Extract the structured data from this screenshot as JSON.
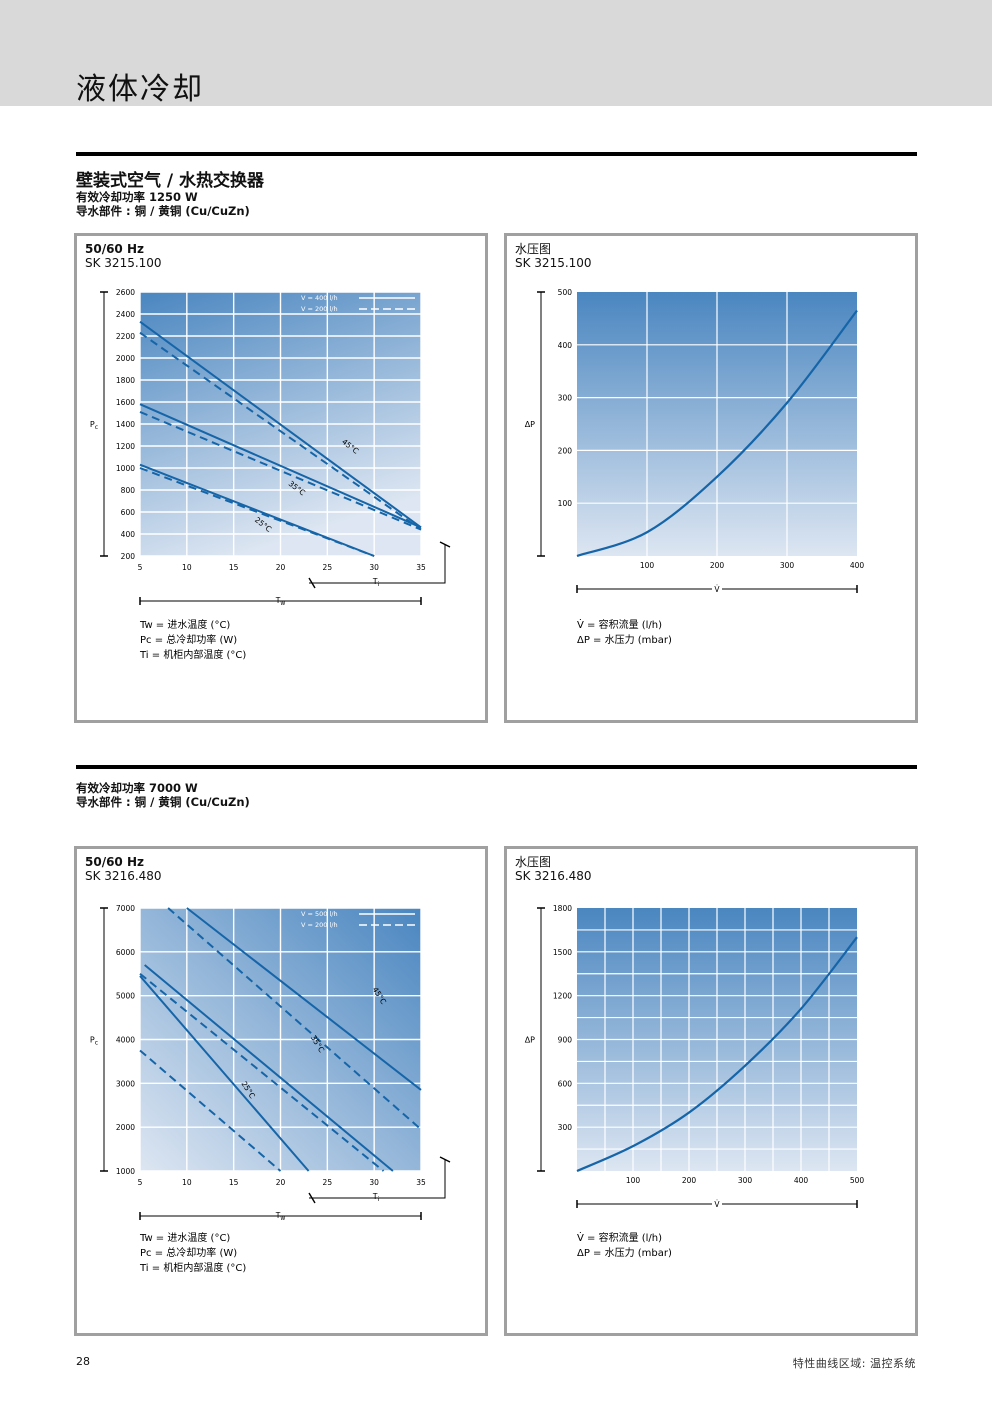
{
  "page": {
    "title": "液体冷却",
    "number": "28",
    "footer": "特性曲线区域: 温控系统"
  },
  "section1": {
    "heading": "壁装式空气 / 水热交换器",
    "power": "有效冷却功率 1250 W",
    "material": "导水部件 : 铜 / 黄铜 (Cu/CuZn)"
  },
  "section2": {
    "power": "有效冷却功率 7000 W",
    "material": "导水部件 : 铜 / 黄铜 (Cu/CuZn)"
  },
  "charts": {
    "c1": {
      "head1": "50/60 Hz",
      "head2": "SK 3215.100"
    },
    "c2": {
      "head1": "水压图",
      "head2": "SK 3215.100"
    },
    "c3": {
      "head1": "50/60 Hz",
      "head2": "SK 3216.480"
    },
    "c4": {
      "head1": "水压图",
      "head2": "SK 3216.480"
    }
  },
  "colors": {
    "grad_top": "#4a86c0",
    "grad_bottom": "#dde6f2",
    "line": "#1565a8"
  },
  "chart_data": [
    {
      "type": "line",
      "xlabel": "Tw",
      "ylabel": "Pc",
      "x2label": "Ti",
      "xlim": [
        5,
        35
      ],
      "ylim": [
        200,
        2600
      ],
      "xticks": [
        5,
        10,
        15,
        20,
        25,
        30,
        35
      ],
      "yticks": [
        200,
        400,
        600,
        800,
        1000,
        1200,
        1400,
        1600,
        1800,
        2000,
        2200,
        2400,
        2600
      ],
      "legend": [
        {
          "label": "V = 400 l/h",
          "style": "solid"
        },
        {
          "label": "V = 200 l/h",
          "style": "dashed"
        }
      ],
      "series": [
        {
          "name": "45°C",
          "flow": "400",
          "style": "solid",
          "x": [
            5,
            35
          ],
          "y": [
            2330,
            460
          ]
        },
        {
          "name": "45°C",
          "flow": "200",
          "style": "dashed",
          "x": [
            5,
            35
          ],
          "y": [
            2230,
            440
          ]
        },
        {
          "name": "35°C",
          "flow": "400",
          "style": "solid",
          "x": [
            5,
            35
          ],
          "y": [
            1580,
            460
          ]
        },
        {
          "name": "35°C",
          "flow": "200",
          "style": "dashed",
          "x": [
            5,
            35
          ],
          "y": [
            1510,
            440
          ]
        },
        {
          "name": "25°C",
          "flow": "400",
          "style": "solid",
          "x": [
            5,
            30
          ],
          "y": [
            1030,
            200
          ]
        },
        {
          "name": "25°C",
          "flow": "200",
          "style": "dashed",
          "x": [
            5,
            30
          ],
          "y": [
            1000,
            200
          ]
        }
      ],
      "annotations": [
        "45°C",
        "35°C",
        "25°C"
      ],
      "legend_keys": {
        "Tw": "Tw = 进水温度 (°C)",
        "Pc": "Pc = 总冷却功率 (W)",
        "Ti": "Ti  = 机柜内部温度 (°C)"
      }
    },
    {
      "type": "line",
      "xlabel": "V̇",
      "ylabel": "ΔP",
      "xlim": [
        0,
        400
      ],
      "ylim": [
        0,
        500
      ],
      "xticks": [
        100,
        200,
        300,
        400
      ],
      "yticks": [
        100,
        200,
        300,
        400,
        500
      ],
      "series": [
        {
          "name": "",
          "x": [
            0,
            100,
            200,
            300,
            400
          ],
          "y": [
            0,
            45,
            150,
            290,
            465
          ]
        }
      ],
      "legend_keys": {
        "V": "V̇  = 容积流量 (l/h)",
        "P": "ΔP = 水压力 (mbar)"
      }
    },
    {
      "type": "line",
      "xlabel": "Tw",
      "ylabel": "Pc",
      "x2label": "Ti",
      "xlim": [
        5,
        35
      ],
      "ylim": [
        1000,
        7000
      ],
      "xticks": [
        5,
        10,
        15,
        20,
        25,
        30,
        35
      ],
      "yticks": [
        1000,
        2000,
        3000,
        4000,
        5000,
        6000,
        7000
      ],
      "legend": [
        {
          "label": "V = 500 l/h",
          "style": "solid"
        },
        {
          "label": "V = 200 l/h",
          "style": "dashed"
        }
      ],
      "series": [
        {
          "name": "45°C",
          "flow": "500",
          "style": "solid",
          "x": [
            10,
            35
          ],
          "y": [
            7000,
            2850
          ]
        },
        {
          "name": "45°C",
          "flow": "200",
          "style": "dashed",
          "x": [
            8,
            35
          ],
          "y": [
            7000,
            1950
          ]
        },
        {
          "name": "35°C",
          "flow": "500",
          "style": "solid",
          "x": [
            5.5,
            32
          ],
          "y": [
            5700,
            1000
          ]
        },
        {
          "name": "35°C",
          "flow": "200",
          "style": "dashed",
          "x": [
            5,
            31
          ],
          "y": [
            5500,
            1000
          ]
        },
        {
          "name": "25°C",
          "flow": "500",
          "style": "solid",
          "x": [
            5,
            23
          ],
          "y": [
            5450,
            1000
          ]
        },
        {
          "name": "25°C",
          "flow": "200",
          "style": "dashed",
          "x": [
            5,
            20
          ],
          "y": [
            3750,
            1000
          ]
        }
      ],
      "annotations": [
        "45°C",
        "35°C",
        "25°C"
      ],
      "legend_keys": {
        "Tw": "Tw = 进水温度 (°C)",
        "Pc": "Pc = 总冷却功率 (W)",
        "Ti": "Ti  = 机柜内部温度 (°C)"
      }
    },
    {
      "type": "line",
      "xlabel": "V̇",
      "ylabel": "ΔP",
      "xlim": [
        0,
        500
      ],
      "ylim": [
        0,
        1800
      ],
      "xticks": [
        100,
        200,
        300,
        400,
        500
      ],
      "yticks": [
        300,
        600,
        900,
        1200,
        1500,
        1800
      ],
      "series": [
        {
          "name": "",
          "x": [
            0,
            100,
            200,
            300,
            400,
            500
          ],
          "y": [
            0,
            170,
            400,
            720,
            1110,
            1600
          ]
        }
      ],
      "legend_keys": {
        "V": "V̇  = 容积流量 (l/h)",
        "P": "ΔP = 水压力 (mbar)"
      }
    }
  ]
}
